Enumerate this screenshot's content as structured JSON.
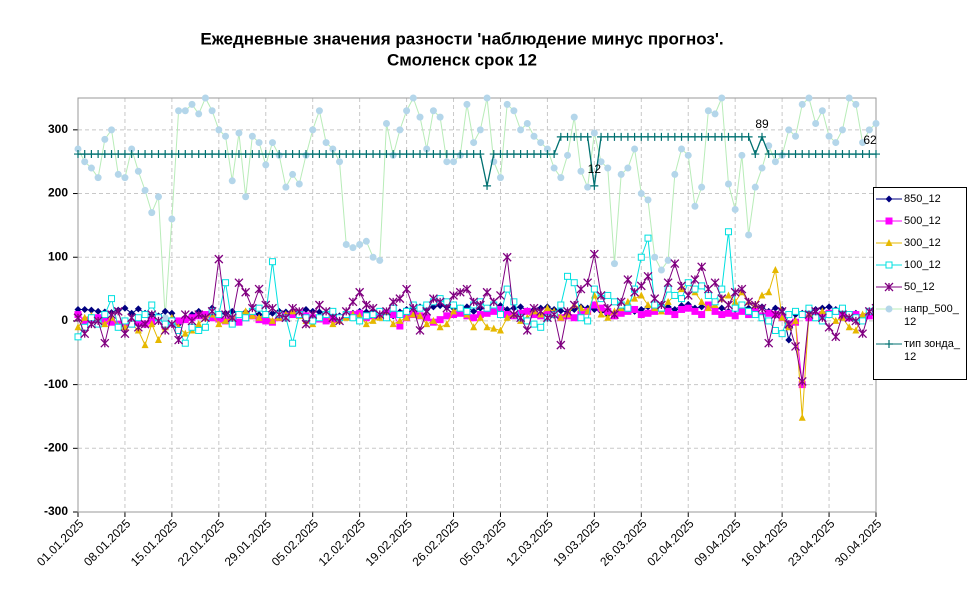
{
  "chart_data": {
    "type": "line",
    "title": "Ежедневные значения разности 'наблюдение минус прогноз'.",
    "subtitle": "Смоленск    срок 12",
    "categories": [
      "01.01.2025",
      null,
      null,
      null,
      null,
      null,
      null,
      "08.01.2025",
      null,
      null,
      null,
      null,
      null,
      null,
      "15.01.2025",
      null,
      null,
      null,
      null,
      null,
      null,
      "22.01.2025",
      null,
      null,
      null,
      null,
      null,
      null,
      "29.01.2025",
      null,
      null,
      null,
      null,
      null,
      null,
      "05.02.2025",
      null,
      null,
      null,
      null,
      null,
      null,
      "12.02.2025",
      null,
      null,
      null,
      null,
      null,
      null,
      "19.02.2025",
      null,
      null,
      null,
      null,
      null,
      null,
      "26.02.2025",
      null,
      null,
      null,
      null,
      null,
      null,
      "05.03.2025",
      null,
      null,
      null,
      null,
      null,
      null,
      "12.03.2025",
      null,
      null,
      null,
      null,
      null,
      null,
      "19.03.2025",
      null,
      null,
      null,
      null,
      null,
      null,
      "26.03.2025",
      null,
      null,
      null,
      null,
      null,
      null,
      "02.04.2025",
      null,
      null,
      null,
      null,
      null,
      null,
      "09.04.2025",
      null,
      null,
      null,
      null,
      null,
      null,
      "16.04.2025",
      null,
      null,
      null,
      null,
      null,
      null,
      "23.04.2025",
      null,
      null,
      null,
      null,
      null,
      null,
      "30.04.2025"
    ],
    "ylim": [
      -300,
      350
    ],
    "yticks": [
      -300,
      -200,
      -100,
      0,
      100,
      200,
      300
    ],
    "grid": true,
    "legend": "right",
    "series": [
      {
        "name": "850_12",
        "color": "#000080",
        "marker_color": "#000080",
        "marker": "diamond",
        "values": [
          18,
          18,
          17,
          15,
          14,
          13,
          17,
          20,
          12,
          19,
          12,
          10,
          8,
          15,
          12,
          -5,
          5,
          10,
          15,
          8,
          20,
          10,
          12,
          15,
          10,
          14,
          15,
          10,
          8,
          12,
          15,
          14,
          10,
          12,
          18,
          15,
          14,
          10,
          12,
          8,
          10,
          12,
          15,
          14,
          16,
          12,
          10,
          8,
          14,
          18,
          20,
          22,
          18,
          22,
          24,
          22,
          20,
          18,
          22,
          15,
          20,
          18,
          22,
          24,
          18,
          20,
          22,
          16,
          18,
          20,
          22,
          18,
          16,
          14,
          18,
          22,
          20,
          18,
          15,
          10,
          12,
          18,
          20,
          15,
          18,
          22,
          20,
          25,
          22,
          18,
          24,
          26,
          20,
          22,
          24,
          18,
          20,
          15,
          18,
          22,
          20,
          18,
          22,
          15,
          20,
          18,
          -30,
          10,
          12,
          15,
          18,
          20,
          22,
          18,
          15,
          10,
          12,
          8,
          10,
          15
        ]
      },
      {
        "name": "500_12",
        "color": "#ff00ff",
        "marker_color": "#ff00ff",
        "marker": "square",
        "values": [
          10,
          0,
          2,
          5,
          0,
          -2,
          -5,
          -3,
          -5,
          -2,
          -5,
          0,
          5,
          -8,
          -3,
          0,
          2,
          5,
          8,
          10,
          5,
          3,
          0,
          2,
          -2,
          5,
          8,
          2,
          0,
          -2,
          5,
          8,
          10,
          12,
          8,
          5,
          3,
          0,
          2,
          5,
          8,
          10,
          12,
          5,
          8,
          10,
          12,
          10,
          -8,
          5,
          10,
          8,
          5,
          -2,
          2,
          8,
          10,
          12,
          8,
          5,
          10,
          12,
          15,
          18,
          10,
          8,
          12,
          15,
          10,
          8,
          12,
          10,
          5,
          8,
          5,
          10,
          15,
          25,
          20,
          15,
          8,
          12,
          15,
          18,
          10,
          12,
          15,
          20,
          15,
          10,
          18,
          20,
          15,
          10,
          25,
          15,
          10,
          12,
          8,
          15,
          10,
          15,
          8,
          12,
          10,
          5,
          -5,
          -2,
          -100,
          5,
          8,
          10,
          12,
          15,
          8,
          5,
          10,
          5,
          8,
          15
        ]
      },
      {
        "name": "300_12",
        "color": "#e6b800",
        "marker_color": "#e6b800",
        "marker": "triangle",
        "values": [
          -10,
          5,
          8,
          0,
          -5,
          5,
          -8,
          -10,
          -5,
          -15,
          -38,
          -5,
          -30,
          -10,
          5,
          -10,
          -20,
          -15,
          -5,
          5,
          10,
          -5,
          0,
          5,
          10,
          15,
          8,
          5,
          10,
          0,
          5,
          10,
          15,
          8,
          0,
          -5,
          5,
          10,
          -5,
          0,
          5,
          10,
          8,
          -5,
          0,
          5,
          10,
          -5,
          0,
          5,
          10,
          8,
          -5,
          0,
          -10,
          -5,
          15,
          20,
          10,
          -10,
          5,
          -10,
          -12,
          -15,
          5,
          10,
          0,
          5,
          15,
          10,
          20,
          15,
          5,
          10,
          25,
          20,
          15,
          40,
          10,
          5,
          15,
          20,
          30,
          35,
          40,
          25,
          20,
          15,
          30,
          40,
          50,
          60,
          45,
          30,
          20,
          25,
          35,
          40,
          30,
          45,
          30,
          25,
          40,
          45,
          80,
          5,
          -10,
          0,
          -152,
          10,
          5,
          15,
          10,
          0,
          5,
          -10,
          -15,
          10,
          15,
          20
        ]
      },
      {
        "name": "100_12",
        "color": "#00e0e0",
        "marker_color": "#00e0e0",
        "marker": "open-square",
        "values": [
          -25,
          -10,
          5,
          -5,
          10,
          35,
          -10,
          0,
          -5,
          5,
          10,
          25,
          5,
          -5,
          0,
          -15,
          -35,
          -10,
          -15,
          -10,
          15,
          10,
          60,
          -5,
          10,
          5,
          15,
          20,
          10,
          93,
          10,
          5,
          -35,
          10,
          5,
          0,
          5,
          10,
          15,
          5,
          10,
          5,
          0,
          8,
          10,
          15,
          5,
          20,
          10,
          15,
          25,
          20,
          25,
          30,
          35,
          30,
          25,
          20,
          15,
          25,
          30,
          20,
          25,
          10,
          50,
          30,
          5,
          0,
          -5,
          -10,
          5,
          10,
          25,
          70,
          60,
          5,
          0,
          50,
          35,
          40,
          30,
          25,
          20,
          50,
          100,
          130,
          25,
          20,
          50,
          40,
          35,
          60,
          50,
          55,
          40,
          30,
          50,
          140,
          20,
          25,
          15,
          10,
          5,
          0,
          -15,
          -20,
          10,
          15,
          10,
          20,
          5,
          0,
          10,
          15,
          20,
          10,
          5,
          0,
          15,
          20
        ]
      },
      {
        "name": "50_12",
        "color": "#800080",
        "marker_color": "#800080",
        "marker": "star",
        "values": [
          5,
          -20,
          -5,
          0,
          -35,
          10,
          15,
          -20,
          5,
          -10,
          -5,
          10,
          0,
          -15,
          -5,
          -30,
          10,
          0,
          10,
          5,
          15,
          97,
          10,
          5,
          60,
          45,
          20,
          50,
          25,
          20,
          10,
          5,
          20,
          15,
          -5,
          10,
          25,
          15,
          5,
          0,
          15,
          30,
          45,
          25,
          20,
          10,
          15,
          30,
          35,
          50,
          20,
          -15,
          15,
          35,
          30,
          20,
          40,
          45,
          50,
          30,
          25,
          45,
          30,
          40,
          100,
          10,
          5,
          -15,
          20,
          15,
          5,
          10,
          -38,
          15,
          25,
          50,
          60,
          105,
          40,
          20,
          10,
          30,
          65,
          45,
          55,
          70,
          35,
          25,
          60,
          90,
          55,
          40,
          65,
          85,
          50,
          60,
          35,
          25,
          45,
          50,
          30,
          25,
          20,
          -35,
          10,
          15,
          -5,
          -40,
          -95,
          10,
          15,
          5,
          -10,
          -25,
          10,
          5,
          0,
          -20,
          15,
          20
        ]
      },
      {
        "name": "напр_500_12",
        "color": "#b8ecb8",
        "marker_color": "#b4d6ea",
        "marker": "circle",
        "values": [
          270,
          250,
          240,
          225,
          285,
          300,
          230,
          225,
          270,
          235,
          205,
          170,
          195,
          5,
          160,
          330,
          330,
          340,
          325,
          350,
          330,
          300,
          290,
          220,
          295,
          195,
          290,
          280,
          245,
          280,
          260,
          210,
          230,
          215,
          260,
          300,
          330,
          280,
          270,
          250,
          120,
          115,
          120,
          125,
          100,
          95,
          310,
          260,
          300,
          330,
          350,
          320,
          270,
          330,
          320,
          250,
          250,
          260,
          340,
          280,
          300,
          350,
          250,
          225,
          340,
          330,
          300,
          310,
          290,
          280,
          270,
          240,
          225,
          260,
          320,
          235,
          210,
          295,
          250,
          240,
          90,
          230,
          240,
          270,
          200,
          190,
          100,
          80,
          95,
          230,
          270,
          260,
          180,
          210,
          330,
          325,
          350,
          215,
          175,
          260,
          135,
          210,
          240,
          275,
          250,
          260,
          300,
          290,
          340,
          350,
          310,
          330,
          290,
          280,
          300,
          350,
          340,
          280,
          300,
          310
        ]
      },
      {
        "name": "тип зонда_12",
        "color": "#007070",
        "marker_color": "#007070",
        "marker": "plus",
        "values": [
          262,
          262,
          262,
          262,
          262,
          262,
          262,
          262,
          262,
          262,
          262,
          262,
          262,
          262,
          262,
          262,
          262,
          262,
          262,
          262,
          262,
          262,
          262,
          262,
          262,
          262,
          262,
          262,
          262,
          262,
          262,
          262,
          262,
          262,
          262,
          262,
          262,
          262,
          262,
          262,
          262,
          262,
          262,
          262,
          262,
          262,
          262,
          262,
          262,
          262,
          262,
          262,
          262,
          262,
          262,
          262,
          262,
          262,
          262,
          262,
          262,
          212,
          262,
          262,
          262,
          262,
          262,
          262,
          262,
          262,
          262,
          262,
          289,
          289,
          289,
          289,
          289,
          212,
          289,
          289,
          289,
          289,
          289,
          289,
          289,
          289,
          289,
          289,
          289,
          289,
          289,
          289,
          289,
          289,
          289,
          289,
          289,
          289,
          289,
          289,
          289,
          262,
          289,
          262,
          262,
          262,
          262,
          262,
          262,
          262,
          262,
          262,
          262,
          262,
          262,
          262,
          262,
          262,
          262,
          262
        ]
      }
    ],
    "annotations": [
      {
        "text": "12"
      },
      {
        "text": "89"
      },
      {
        "text": "62"
      }
    ]
  }
}
